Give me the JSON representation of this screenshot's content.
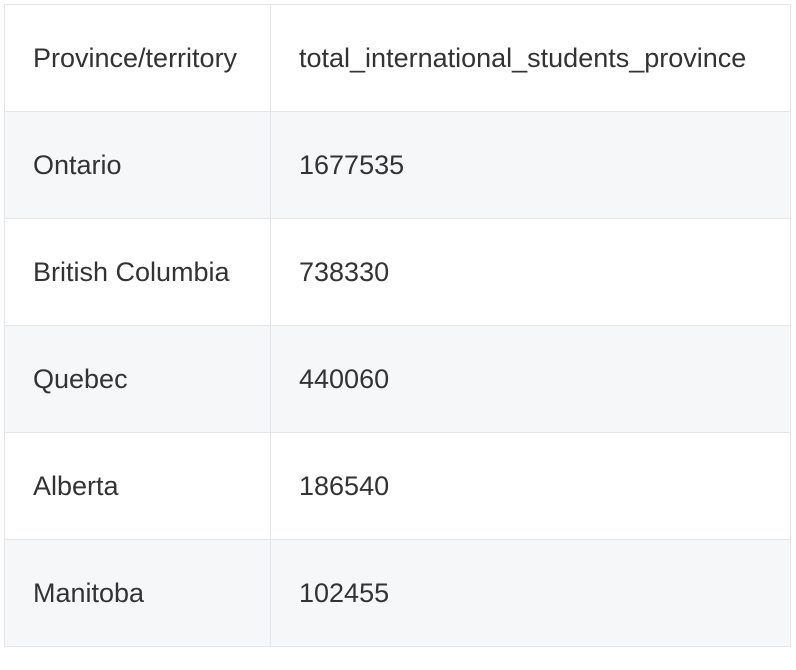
{
  "chart_data": {
    "type": "table",
    "columns": [
      "Province/territory",
      "total_international_students_province"
    ],
    "rows": [
      [
        "Ontario",
        "1677535"
      ],
      [
        "British Columbia",
        "738330"
      ],
      [
        "Quebec",
        "440060"
      ],
      [
        "Alberta",
        "186540"
      ],
      [
        "Manitoba",
        "102455"
      ]
    ]
  }
}
